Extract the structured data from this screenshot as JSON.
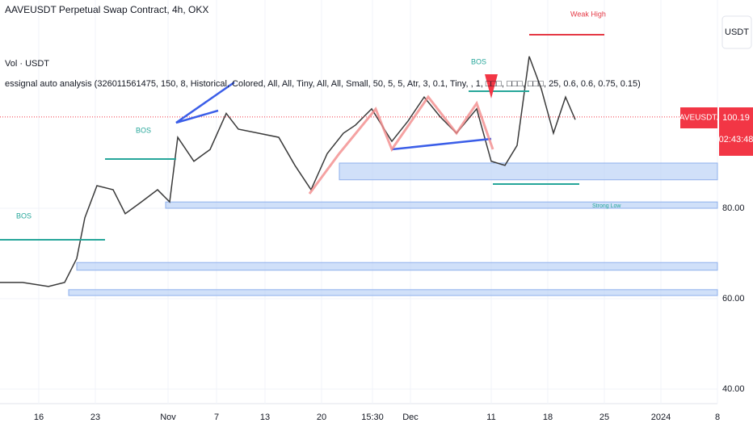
{
  "chart_data": {
    "type": "line",
    "title": "AAVEUSDT Perpetual Swap Contract, 4h, OKX",
    "subtitle": "Vol · USDT",
    "indicator": "essignal auto analysis (326011561475, 150, 8, Historical, Colored, All, All, Tiny, All, All, Small, 50, 5, 5, Atr, 3, 0.1, Tiny, , 1, □□□, □□□, □□□, 25, 0.6, 0.6, 0.75, 0.15)",
    "currency": "USDT",
    "symbol_label": "AAVEUSDT.P",
    "last_price": 100.19,
    "countdown": "02:43:48",
    "annotations": [
      "BOS",
      "BOS",
      "BOS",
      "Weak High",
      "Strong Low"
    ],
    "color": "#3a3a3a",
    "x": [
      11.2,
      14,
      17.2,
      19.2,
      20.7,
      21.7,
      23.2,
      25.2,
      26.7,
      28.7,
      30.7,
      32.2,
      33.2,
      35.2,
      37.2,
      39.2,
      40.7,
      43.2,
      45.7,
      47.7,
      49.7,
      51.7,
      53.7,
      55.2,
      57.2,
      59.7,
      61.7,
      63.7,
      65.7,
      67.7,
      70.2,
      72,
      73.7,
      75.2,
      76.7,
      78.2,
      79.7,
      81.2,
      82.4
    ],
    "values": [
      63.6,
      63.6,
      62.7,
      63.6,
      68.9,
      77.9,
      85,
      84.1,
      78.8,
      81.4,
      84.1,
      81.4,
      95.7,
      90.4,
      93,
      101,
      97.5,
      96.6,
      95.7,
      89.5,
      84.1,
      92.1,
      96.6,
      98.4,
      102,
      94.8,
      99.3,
      104.6,
      100.2,
      96.6,
      102,
      90.4,
      89.5,
      93.9,
      113.6,
      106.4,
      96.6,
      104.6,
      99.6
    ],
    "zones": [
      {
        "start": 53.2,
        "low": 86.3,
        "high": 90
      },
      {
        "start": 31.7,
        "low": 80,
        "high": 81.4
      },
      {
        "start": 20.7,
        "low": 66.3,
        "high": 68
      },
      {
        "start": 19.7,
        "low": 60.7,
        "high": 62
      }
    ],
    "zone_color": "#bcd3f7",
    "xlim": [
      11.2,
      100
    ],
    "ylim": [
      36.79,
      126.07
    ],
    "xticks": [
      16,
      23,
      {
        "value": 32,
        "label": "Nov"
      },
      {
        "value": 38,
        "label": "7"
      },
      {
        "value": 44,
        "label": "13"
      },
      {
        "value": 51,
        "label": "20"
      },
      {
        "value": 57.3,
        "label": "15:30"
      },
      {
        "value": 62,
        "label": "Dec"
      },
      {
        "value": 72,
        "label": "11"
      },
      {
        "value": 79,
        "label": "18"
      },
      {
        "value": 86,
        "label": "25"
      },
      {
        "value": 93,
        "label": "2024"
      },
      {
        "value": 100,
        "label": "8"
      }
    ],
    "yticks": [
      {
        "value": 40,
        "label": "40.00"
      },
      {
        "value": 60,
        "label": "60.00"
      },
      {
        "value": 80,
        "label": "80.00"
      }
    ],
    "grid": true
  }
}
